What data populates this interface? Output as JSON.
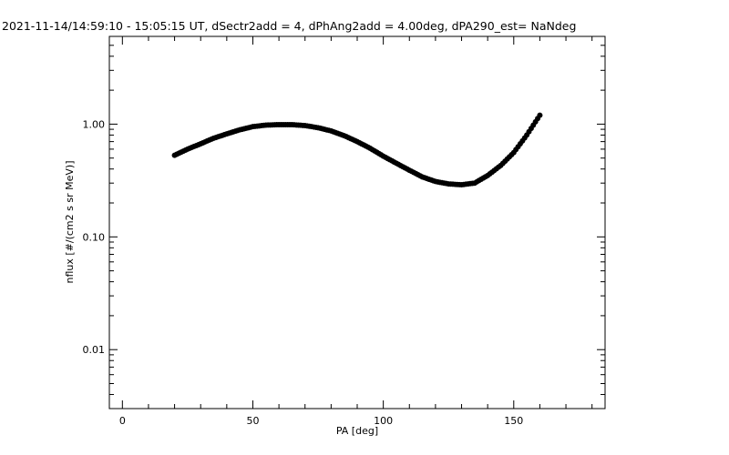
{
  "chart_data": {
    "type": "scatter",
    "title": "2021-11-14/14:59:10 - 15:05:15 UT, dSectr2add = 4, dPhAng2add = 4.00deg, dPA290_est=    NaNdeg",
    "xlabel": "PA [deg]",
    "ylabel": "nflux [#/(cm2 s sr MeV)]",
    "xlim": [
      -5,
      185
    ],
    "ylim": [
      0.003,
      6.0
    ],
    "yscale": "log",
    "x_ticks": [
      0,
      50,
      100,
      150
    ],
    "x_tick_labels": [
      "0",
      "50",
      "100",
      "150"
    ],
    "y_ticks": [
      0.01,
      0.1,
      1.0
    ],
    "y_tick_labels": [
      "0.01",
      "0.10",
      "1.00"
    ],
    "grid": false,
    "marker_color": "#000000",
    "series": [
      {
        "x": [
          20,
          25,
          30,
          35,
          40,
          45,
          50,
          55,
          60,
          65,
          70,
          75,
          80,
          85,
          90,
          95,
          100,
          105,
          110,
          115,
          120,
          125,
          130,
          135,
          140,
          145,
          150,
          155,
          160
        ],
        "y": [
          0.53,
          0.6,
          0.67,
          0.75,
          0.82,
          0.89,
          0.95,
          0.98,
          0.99,
          0.99,
          0.97,
          0.93,
          0.87,
          0.79,
          0.7,
          0.61,
          0.52,
          0.45,
          0.39,
          0.34,
          0.31,
          0.295,
          0.29,
          0.3,
          0.35,
          0.43,
          0.56,
          0.8,
          1.2
        ]
      }
    ]
  }
}
